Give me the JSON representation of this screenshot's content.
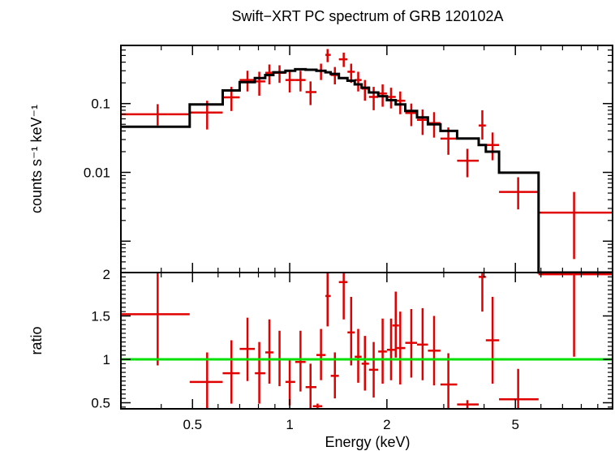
{
  "title": "Swift−XRT PC spectrum of GRB 120102A",
  "colors": {
    "data": "#e00000",
    "model": "#000000",
    "unity": "#00e000",
    "frame": "#000000"
  },
  "chart_data": [
    {
      "type": "scatter",
      "panel": "spectrum",
      "ylabel": "counts s⁻¹ keV⁻¹",
      "yscale": "log",
      "xscale": "log",
      "xlim": [
        0.3,
        10
      ],
      "ylim": [
        0.00035,
        0.7
      ],
      "y_ticks": [
        {
          "value": 0.1,
          "label": "0.1"
        },
        {
          "value": 0.01,
          "label": "0.01"
        }
      ],
      "series": [
        {
          "role": "data",
          "points": [
            {
              "x": 0.39,
              "xlo": 0.3,
              "xhi": 0.49,
              "y": 0.07,
              "ylo": 0.048,
              "yhi": 0.098
            },
            {
              "x": 0.555,
              "xlo": 0.49,
              "xhi": 0.62,
              "y": 0.074,
              "ylo": 0.042,
              "yhi": 0.11
            },
            {
              "x": 0.66,
              "xlo": 0.62,
              "xhi": 0.7,
              "y": 0.123,
              "ylo": 0.078,
              "yhi": 0.175
            },
            {
              "x": 0.74,
              "xlo": 0.7,
              "xhi": 0.78,
              "y": 0.22,
              "ylo": 0.15,
              "yhi": 0.3
            },
            {
              "x": 0.805,
              "xlo": 0.78,
              "xhi": 0.84,
              "y": 0.21,
              "ylo": 0.13,
              "yhi": 0.29
            },
            {
              "x": 0.865,
              "xlo": 0.84,
              "xhi": 0.89,
              "y": 0.28,
              "ylo": 0.19,
              "yhi": 0.37
            },
            {
              "x": 0.93,
              "xlo": 0.89,
              "xhi": 0.97,
              "y": 0.28,
              "ylo": 0.2,
              "yhi": 0.36
            },
            {
              "x": 1.0,
              "xlo": 0.97,
              "xhi": 1.04,
              "y": 0.22,
              "ylo": 0.145,
              "yhi": 0.29
            },
            {
              "x": 1.08,
              "xlo": 1.04,
              "xhi": 1.12,
              "y": 0.22,
              "ylo": 0.15,
              "yhi": 0.3
            },
            {
              "x": 1.16,
              "xlo": 1.12,
              "xhi": 1.21,
              "y": 0.147,
              "ylo": 0.095,
              "yhi": 0.21
            },
            {
              "x": 1.25,
              "xlo": 1.21,
              "xhi": 1.29,
              "y": 0.3,
              "ylo": 0.22,
              "yhi": 0.38
            },
            {
              "x": 1.31,
              "xlo": 1.29,
              "xhi": 1.34,
              "y": 0.51,
              "ylo": 0.4,
              "yhi": 0.62
            },
            {
              "x": 1.38,
              "xlo": 1.34,
              "xhi": 1.42,
              "y": 0.26,
              "ylo": 0.19,
              "yhi": 0.34
            },
            {
              "x": 1.47,
              "xlo": 1.42,
              "xhi": 1.51,
              "y": 0.44,
              "ylo": 0.34,
              "yhi": 0.55
            },
            {
              "x": 1.55,
              "xlo": 1.51,
              "xhi": 1.59,
              "y": 0.29,
              "ylo": 0.2,
              "yhi": 0.38
            },
            {
              "x": 1.63,
              "xlo": 1.59,
              "xhi": 1.67,
              "y": 0.22,
              "ylo": 0.15,
              "yhi": 0.29
            },
            {
              "x": 1.71,
              "xlo": 1.67,
              "xhi": 1.76,
              "y": 0.165,
              "ylo": 0.11,
              "yhi": 0.22
            },
            {
              "x": 1.82,
              "xlo": 1.76,
              "xhi": 1.88,
              "y": 0.125,
              "ylo": 0.08,
              "yhi": 0.175
            },
            {
              "x": 1.94,
              "xlo": 1.88,
              "xhi": 2.0,
              "y": 0.14,
              "ylo": 0.09,
              "yhi": 0.19
            },
            {
              "x": 2.06,
              "xlo": 2.0,
              "xhi": 2.13,
              "y": 0.125,
              "ylo": 0.085,
              "yhi": 0.17
            },
            {
              "x": 2.2,
              "xlo": 2.13,
              "xhi": 2.28,
              "y": 0.11,
              "ylo": 0.07,
              "yhi": 0.15
            },
            {
              "x": 2.38,
              "xlo": 2.28,
              "xhi": 2.48,
              "y": 0.073,
              "ylo": 0.047,
              "yhi": 0.1
            },
            {
              "x": 2.58,
              "xlo": 2.48,
              "xhi": 2.68,
              "y": 0.058,
              "ylo": 0.035,
              "yhi": 0.082
            },
            {
              "x": 2.8,
              "xlo": 2.68,
              "xhi": 2.93,
              "y": 0.052,
              "ylo": 0.032,
              "yhi": 0.075
            },
            {
              "x": 3.1,
              "xlo": 2.93,
              "xhi": 3.3,
              "y": 0.031,
              "ylo": 0.018,
              "yhi": 0.045
            },
            {
              "x": 3.55,
              "xlo": 3.3,
              "xhi": 3.85,
              "y": 0.0148,
              "ylo": 0.0085,
              "yhi": 0.022
            },
            {
              "x": 3.95,
              "xlo": 3.85,
              "xhi": 4.05,
              "y": 0.048,
              "ylo": 0.03,
              "yhi": 0.08
            },
            {
              "x": 4.25,
              "xlo": 4.05,
              "xhi": 4.45,
              "y": 0.025,
              "ylo": 0.015,
              "yhi": 0.038
            },
            {
              "x": 5.1,
              "xlo": 4.45,
              "xhi": 5.9,
              "y": 0.0052,
              "ylo": 0.0029,
              "yhi": 0.0085
            },
            {
              "x": 7.6,
              "xlo": 5.9,
              "xhi": 10.0,
              "y": 0.0026,
              "ylo": 0.00055,
              "yhi": 0.0052
            }
          ]
        },
        {
          "role": "model",
          "steps": [
            {
              "xlo": 0.3,
              "xhi": 0.49,
              "y": 0.046
            },
            {
              "xlo": 0.49,
              "xhi": 0.62,
              "y": 0.097
            },
            {
              "xlo": 0.62,
              "xhi": 0.7,
              "y": 0.155
            },
            {
              "xlo": 0.7,
              "xhi": 0.78,
              "y": 0.205
            },
            {
              "xlo": 0.78,
              "xhi": 0.84,
              "y": 0.235
            },
            {
              "xlo": 0.84,
              "xhi": 0.89,
              "y": 0.26
            },
            {
              "xlo": 0.89,
              "xhi": 0.97,
              "y": 0.285
            },
            {
              "xlo": 0.97,
              "xhi": 1.04,
              "y": 0.3
            },
            {
              "xlo": 1.04,
              "xhi": 1.12,
              "y": 0.315
            },
            {
              "xlo": 1.12,
              "xhi": 1.21,
              "y": 0.31
            },
            {
              "xlo": 1.21,
              "xhi": 1.29,
              "y": 0.3
            },
            {
              "xlo": 1.29,
              "xhi": 1.34,
              "y": 0.285
            },
            {
              "xlo": 1.34,
              "xhi": 1.42,
              "y": 0.27
            },
            {
              "xlo": 1.42,
              "xhi": 1.51,
              "y": 0.235
            },
            {
              "xlo": 1.51,
              "xhi": 1.59,
              "y": 0.215
            },
            {
              "xlo": 1.59,
              "xhi": 1.67,
              "y": 0.19
            },
            {
              "xlo": 1.67,
              "xhi": 1.76,
              "y": 0.17
            },
            {
              "xlo": 1.76,
              "xhi": 1.88,
              "y": 0.145
            },
            {
              "xlo": 1.88,
              "xhi": 2.0,
              "y": 0.128
            },
            {
              "xlo": 2.0,
              "xhi": 2.13,
              "y": 0.112
            },
            {
              "xlo": 2.13,
              "xhi": 2.28,
              "y": 0.097
            },
            {
              "xlo": 2.28,
              "xhi": 2.48,
              "y": 0.078
            },
            {
              "xlo": 2.48,
              "xhi": 2.68,
              "y": 0.063
            },
            {
              "xlo": 2.68,
              "xhi": 2.93,
              "y": 0.05
            },
            {
              "xlo": 2.93,
              "xhi": 3.3,
              "y": 0.04
            },
            {
              "xlo": 3.3,
              "xhi": 3.85,
              "y": 0.031
            },
            {
              "xlo": 3.85,
              "xhi": 4.05,
              "y": 0.025
            },
            {
              "xlo": 4.05,
              "xhi": 4.45,
              "y": 0.02
            },
            {
              "xlo": 4.45,
              "xhi": 5.9,
              "y": 0.0099
            },
            {
              "xlo": 5.9,
              "xhi": 10.0,
              "y": 0.0003
            }
          ]
        }
      ]
    },
    {
      "type": "scatter",
      "panel": "ratio",
      "xlabel": "Energy (keV)",
      "ylabel": "ratio",
      "xscale": "log",
      "xlim": [
        0.3,
        10
      ],
      "ylim": [
        0.43,
        2.0
      ],
      "x_ticks": [
        {
          "value": 0.5,
          "label": "0.5"
        },
        {
          "value": 1,
          "label": "1"
        },
        {
          "value": 2,
          "label": "2"
        },
        {
          "value": 5,
          "label": "5"
        }
      ],
      "y_ticks": [
        {
          "value": 0.5,
          "label": "0.5"
        },
        {
          "value": 1,
          "label": "1"
        },
        {
          "value": 1.5,
          "label": "1.5"
        },
        {
          "value": 2,
          "label": "2"
        }
      ],
      "reference_line": 1,
      "series": [
        {
          "role": "data",
          "points": [
            {
              "x": 0.39,
              "xlo": 0.3,
              "xhi": 0.49,
              "y": 1.52,
              "ylo": 0.93,
              "yhi": 2.0
            },
            {
              "x": 0.555,
              "xlo": 0.49,
              "xhi": 0.62,
              "y": 0.74,
              "ylo": 0.43,
              "yhi": 1.08
            },
            {
              "x": 0.66,
              "xlo": 0.62,
              "xhi": 0.7,
              "y": 0.84,
              "ylo": 0.49,
              "yhi": 1.22
            },
            {
              "x": 0.74,
              "xlo": 0.7,
              "xhi": 0.78,
              "y": 1.12,
              "ylo": 0.75,
              "yhi": 1.48
            },
            {
              "x": 0.805,
              "xlo": 0.78,
              "xhi": 0.84,
              "y": 0.84,
              "ylo": 0.49,
              "yhi": 1.2
            },
            {
              "x": 0.865,
              "xlo": 0.84,
              "xhi": 0.89,
              "y": 1.08,
              "ylo": 0.72,
              "yhi": 1.46
            },
            {
              "x": 0.93,
              "xlo": 0.89,
              "xhi": 0.97,
              "y": 1.0,
              "ylo": 0.69,
              "yhi": 1.33
            },
            {
              "x": 1.0,
              "xlo": 0.97,
              "xhi": 1.04,
              "y": 0.74,
              "ylo": 0.47,
              "yhi": 1.0
            },
            {
              "x": 1.08,
              "xlo": 1.04,
              "xhi": 1.12,
              "y": 0.97,
              "ylo": 0.63,
              "yhi": 1.33
            },
            {
              "x": 1.16,
              "xlo": 1.12,
              "xhi": 1.21,
              "y": 0.68,
              "ylo": 0.43,
              "yhi": 0.95
            },
            {
              "x": 1.22,
              "xlo": 1.18,
              "xhi": 1.26,
              "y": 0.46,
              "ylo": 0.43,
              "yhi": 0.49
            },
            {
              "x": 1.25,
              "xlo": 1.21,
              "xhi": 1.29,
              "y": 1.05,
              "ylo": 0.76,
              "yhi": 1.35
            },
            {
              "x": 1.31,
              "xlo": 1.29,
              "xhi": 1.34,
              "y": 1.73,
              "ylo": 1.38,
              "yhi": 2.0
            },
            {
              "x": 1.38,
              "xlo": 1.34,
              "xhi": 1.42,
              "y": 0.81,
              "ylo": 0.55,
              "yhi": 1.08
            },
            {
              "x": 1.47,
              "xlo": 1.42,
              "xhi": 1.51,
              "y": 1.89,
              "ylo": 1.46,
              "yhi": 2.0
            },
            {
              "x": 1.55,
              "xlo": 1.51,
              "xhi": 1.59,
              "y": 1.31,
              "ylo": 0.93,
              "yhi": 1.72
            },
            {
              "x": 1.63,
              "xlo": 1.59,
              "xhi": 1.67,
              "y": 1.03,
              "ylo": 0.73,
              "yhi": 1.35
            },
            {
              "x": 1.71,
              "xlo": 1.67,
              "xhi": 1.76,
              "y": 0.95,
              "ylo": 0.64,
              "yhi": 1.27
            },
            {
              "x": 1.82,
              "xlo": 1.76,
              "xhi": 1.88,
              "y": 0.88,
              "ylo": 0.56,
              "yhi": 1.2
            },
            {
              "x": 1.94,
              "xlo": 1.88,
              "xhi": 2.0,
              "y": 1.09,
              "ylo": 0.72,
              "yhi": 1.47
            },
            {
              "x": 2.06,
              "xlo": 2.0,
              "xhi": 2.13,
              "y": 1.11,
              "ylo": 0.76,
              "yhi": 1.47
            },
            {
              "x": 2.13,
              "xlo": 2.08,
              "xhi": 2.18,
              "y": 1.39,
              "ylo": 1.02,
              "yhi": 1.78
            },
            {
              "x": 2.2,
              "xlo": 2.13,
              "xhi": 2.28,
              "y": 1.13,
              "ylo": 0.71,
              "yhi": 1.55
            },
            {
              "x": 2.38,
              "xlo": 2.28,
              "xhi": 2.48,
              "y": 1.19,
              "ylo": 0.79,
              "yhi": 1.58
            },
            {
              "x": 2.58,
              "xlo": 2.48,
              "xhi": 2.68,
              "y": 1.17,
              "ylo": 0.76,
              "yhi": 1.59
            },
            {
              "x": 2.8,
              "xlo": 2.68,
              "xhi": 2.93,
              "y": 1.1,
              "ylo": 0.7,
              "yhi": 1.5
            },
            {
              "x": 3.1,
              "xlo": 2.93,
              "xhi": 3.3,
              "y": 0.71,
              "ylo": 0.43,
              "yhi": 1.07
            },
            {
              "x": 3.55,
              "xlo": 3.3,
              "xhi": 3.85,
              "y": 0.48,
              "ylo": 0.43,
              "yhi": 0.53
            },
            {
              "x": 3.95,
              "xlo": 3.85,
              "xhi": 4.05,
              "y": 1.95,
              "ylo": 1.55,
              "yhi": 2.0
            },
            {
              "x": 4.25,
              "xlo": 4.05,
              "xhi": 4.45,
              "y": 1.22,
              "ylo": 0.72,
              "yhi": 1.72
            },
            {
              "x": 5.1,
              "xlo": 4.45,
              "xhi": 5.9,
              "y": 0.54,
              "ylo": 0.43,
              "yhi": 0.89
            },
            {
              "x": 7.6,
              "xlo": 5.9,
              "xhi": 10.0,
              "y": 1.98,
              "ylo": 1.03,
              "yhi": 2.0
            }
          ]
        }
      ]
    }
  ]
}
